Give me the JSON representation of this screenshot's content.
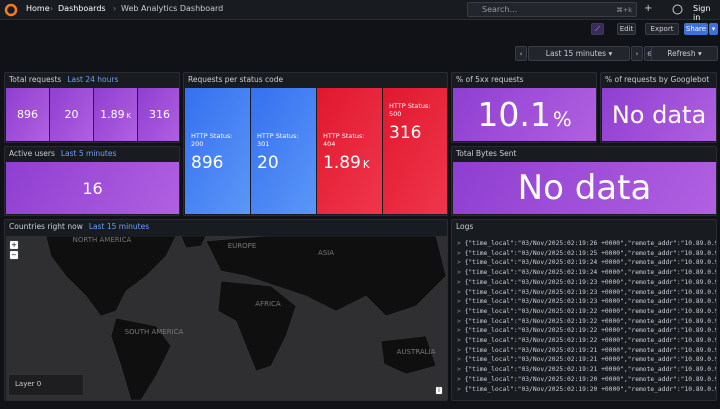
{
  "nav": {
    "breadcrumbs": [
      "Home",
      "Dashboards",
      "Web Analytics Dashboard"
    ],
    "search": "Search...",
    "shortcut": "⌘+k",
    "sign_in": "Sign in"
  },
  "toolbar": {
    "edit": "Edit",
    "export": "Export",
    "share": "Share"
  },
  "time_controls": {
    "range": "Last 15 minutes",
    "refresh": "Refresh"
  },
  "panels": {
    "total_requests": {
      "title": "Total requests",
      "time": "Last 24 hours",
      "stats": [
        {
          "value": "896"
        },
        {
          "value": "20"
        },
        {
          "value": "1.89",
          "unit": "K"
        },
        {
          "value": "316"
        }
      ]
    },
    "active_users": {
      "title": "Active users",
      "time": "Last 5 minutes",
      "value": "16"
    },
    "status_codes": {
      "title": "Requests per status code",
      "stats": [
        {
          "label": "HTTP Status: 200",
          "value": "896"
        },
        {
          "label": "HTTP Status: 301",
          "value": "20"
        },
        {
          "label": "HTTP Status: 404",
          "value": "1.89",
          "unit": "K"
        },
        {
          "label": "HTTP Status: 500",
          "value": "316"
        }
      ]
    },
    "pct_5xx": {
      "title": "% of 5xx requests",
      "value": "10.1",
      "unit": "%"
    },
    "googlebot": {
      "title": "% of requests by Googlebot",
      "value": "No data"
    },
    "bytes_sent": {
      "title": "Total Bytes Sent",
      "value": "No data"
    },
    "countries": {
      "title": "Countries right now",
      "time": "Last 15 minutes",
      "regions": [
        "NORTH AMERICA",
        "EUROPE",
        "ASIA",
        "AFRICA",
        "SOUTH AMERICA",
        "AUSTRALIA"
      ],
      "layer": "Layer 0"
    },
    "logs": {
      "title": "Logs",
      "lines": [
        "{\"time_local\":\"03/Nov/2025:02:19:26 +0000\",\"remote_addr\":\"10.89.0.9\",",
        "{\"time_local\":\"03/Nov/2025:02:19:25 +0000\",\"remote_addr\":\"10.89.0.9\",",
        "{\"time_local\":\"03/Nov/2025:02:19:24 +0000\",\"remote_addr\":\"10.89.0.9\",",
        "{\"time_local\":\"03/Nov/2025:02:19:24 +0000\",\"remote_addr\":\"10.89.0.9\",",
        "{\"time_local\":\"03/Nov/2025:02:19:23 +0000\",\"remote_addr\":\"10.89.0.9\",",
        "{\"time_local\":\"03/Nov/2025:02:19:23 +0000\",\"remote_addr\":\"10.89.0.9\",",
        "{\"time_local\":\"03/Nov/2025:02:19:23 +0000\",\"remote_addr\":\"10.89.0.9\",",
        "{\"time_local\":\"03/Nov/2025:02:19:22 +0000\",\"remote_addr\":\"10.89.0.9\",",
        "{\"time_local\":\"03/Nov/2025:02:19:22 +0000\",\"remote_addr\":\"10.89.0.9\",",
        "{\"time_local\":\"03/Nov/2025:02:19:22 +0000\",\"remote_addr\":\"10.89.0.9\",",
        "{\"time_local\":\"03/Nov/2025:02:19:22 +0000\",\"remote_addr\":\"10.89.0.9\",",
        "{\"time_local\":\"03/Nov/2025:02:19:21 +0000\",\"remote_addr\":\"10.89.0.9\",",
        "{\"time_local\":\"03/Nov/2025:02:19:21 +0000\",\"remote_addr\":\"10.89.0.9\",",
        "{\"time_local\":\"03/Nov/2025:02:19:21 +0000\",\"remote_addr\":\"10.89.0.9\",",
        "{\"time_local\":\"03/Nov/2025:02:19:20 +0000\",\"remote_addr\":\"10.89.0.9\",",
        "{\"time_local\":\"03/Nov/2025:02:19:20 +0000\",\"remote_addr\":\"10.89.0.9\","
      ]
    }
  }
}
